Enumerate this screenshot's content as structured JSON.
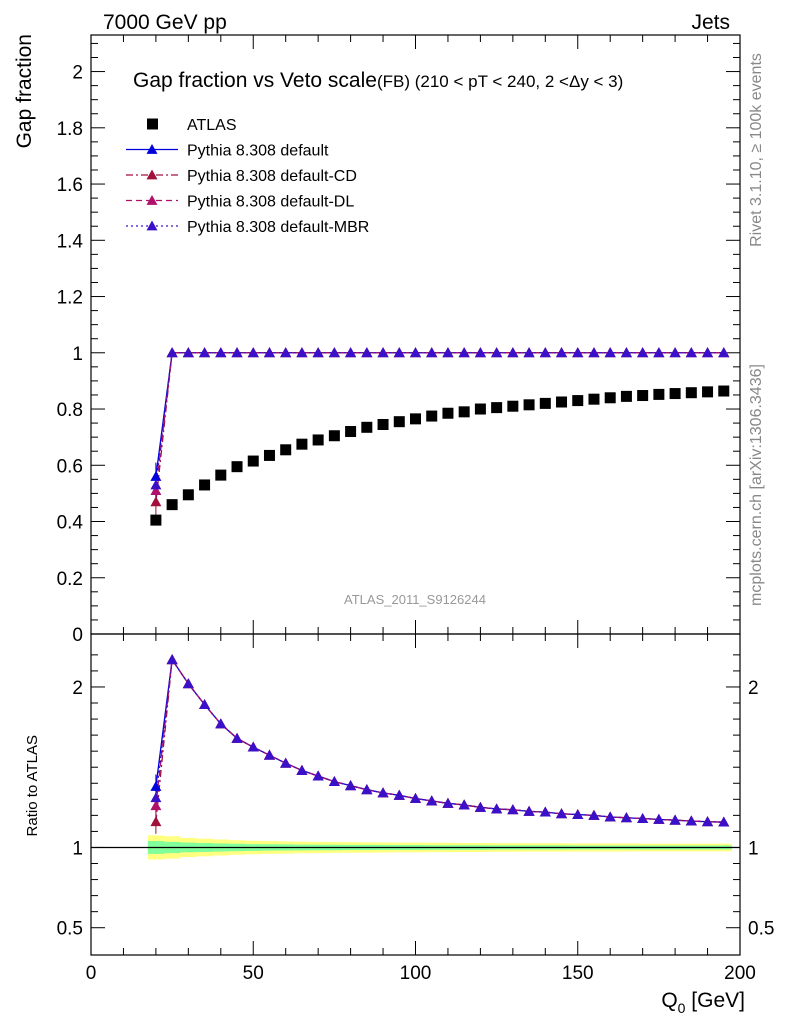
{
  "header": {
    "left": "7000 GeV pp",
    "right": "Jets"
  },
  "side_labels": {
    "rivet": "Rivet 3.1.10, ≥ 100k events",
    "mcplots": "mcplots.cern.ch [arXiv:1306.3436]"
  },
  "chart_data": [
    {
      "type": "scatter",
      "panel": "main",
      "title": "Gap fraction vs Veto scale",
      "subtitle": "(FB) (210 < pT < 240, 2 <Δy < 3)",
      "watermark": "ATLAS_2011_S9126244",
      "ylabel": "Gap fraction",
      "xlabel": "",
      "xlim": [
        0,
        200
      ],
      "ylim": [
        0,
        2.13
      ],
      "yticks": [
        0,
        0.2,
        0.4,
        0.6,
        0.8,
        1,
        1.2,
        1.4,
        1.6,
        1.8,
        2
      ],
      "ytick_labels": [
        "0",
        "0.2",
        "0.4",
        "0.6",
        "0.8",
        "1",
        "1.2",
        "1.4",
        "1.6",
        "1.8",
        "2"
      ],
      "legend_position": "top-left",
      "x": [
        20,
        25,
        30,
        35,
        40,
        45,
        50,
        55,
        60,
        65,
        70,
        75,
        80,
        85,
        90,
        95,
        100,
        105,
        110,
        115,
        120,
        125,
        130,
        135,
        140,
        145,
        150,
        155,
        160,
        165,
        170,
        175,
        180,
        185,
        190,
        195
      ],
      "series": [
        {
          "name": "ATLAS",
          "color": "#000000",
          "marker": "square",
          "values": [
            0.405,
            0.46,
            0.495,
            0.53,
            0.565,
            0.595,
            0.615,
            0.635,
            0.655,
            0.675,
            0.69,
            0.705,
            0.72,
            0.735,
            0.745,
            0.755,
            0.765,
            0.775,
            0.785,
            0.79,
            0.8,
            0.805,
            0.81,
            0.815,
            0.82,
            0.825,
            0.83,
            0.835,
            0.84,
            0.845,
            0.848,
            0.852,
            0.855,
            0.858,
            0.861,
            0.864
          ]
        },
        {
          "name": "Pythia 8.308 default",
          "color": "#0000dd",
          "marker": "triangle",
          "line": "solid",
          "values": [
            0.56,
            1,
            1,
            1,
            1,
            1,
            1,
            1,
            1,
            1,
            1,
            1,
            1,
            1,
            1,
            1,
            1,
            1,
            1,
            1,
            1,
            1,
            1,
            1,
            1,
            1,
            1,
            1,
            1,
            1,
            1,
            1,
            1,
            1,
            1,
            1
          ]
        },
        {
          "name": "Pythia 8.308 default-CD",
          "color": "#a0103a",
          "marker": "triangle",
          "line": "dashdot",
          "values": [
            0.47,
            1,
            1,
            1,
            1,
            1,
            1,
            1,
            1,
            1,
            1,
            1,
            1,
            1,
            1,
            1,
            1,
            1,
            1,
            1,
            1,
            1,
            1,
            1,
            1,
            1,
            1,
            1,
            1,
            1,
            1,
            1,
            1,
            1,
            1,
            1
          ]
        },
        {
          "name": "Pythia 8.308 default-DL",
          "color": "#b0106a",
          "marker": "triangle",
          "line": "dashed",
          "values": [
            0.51,
            1,
            1,
            1,
            1,
            1,
            1,
            1,
            1,
            1,
            1,
            1,
            1,
            1,
            1,
            1,
            1,
            1,
            1,
            1,
            1,
            1,
            1,
            1,
            1,
            1,
            1,
            1,
            1,
            1,
            1,
            1,
            1,
            1,
            1,
            1
          ]
        },
        {
          "name": "Pythia 8.308 default-MBR",
          "color": "#3a10c8",
          "marker": "triangle",
          "line": "dotted",
          "values": [
            0.53,
            1,
            1,
            1,
            1,
            1,
            1,
            1,
            1,
            1,
            1,
            1,
            1,
            1,
            1,
            1,
            1,
            1,
            1,
            1,
            1,
            1,
            1,
            1,
            1,
            1,
            1,
            1,
            1,
            1,
            1,
            1,
            1,
            1,
            1,
            1
          ]
        }
      ]
    },
    {
      "type": "scatter",
      "panel": "ratio",
      "ylabel": "Ratio to ATLAS",
      "xlabel": "Q",
      "xlabel_sub": "0",
      "xlabel_unit": " [GeV]",
      "xlim": [
        0,
        200
      ],
      "ylim": [
        0.33,
        2.33
      ],
      "xticks": [
        0,
        50,
        100,
        150,
        200
      ],
      "xtick_labels": [
        "0",
        "50",
        "100",
        "150",
        "200"
      ],
      "yticks": [
        0.5,
        1,
        2
      ],
      "ytick_labels": [
        "0.5",
        "1",
        "2"
      ],
      "band_color_outer": "#ffff80",
      "band_color_inner": "#80ff9a",
      "x": [
        20,
        25,
        30,
        35,
        40,
        45,
        50,
        55,
        60,
        65,
        70,
        75,
        80,
        85,
        90,
        95,
        100,
        105,
        110,
        115,
        120,
        125,
        130,
        135,
        140,
        145,
        150,
        155,
        160,
        165,
        170,
        175,
        180,
        185,
        190,
        195
      ],
      "band_outer": [
        0.075,
        0.07,
        0.06,
        0.055,
        0.05,
        0.045,
        0.042,
        0.04,
        0.038,
        0.036,
        0.035,
        0.034,
        0.033,
        0.032,
        0.031,
        0.03,
        0.03,
        0.029,
        0.029,
        0.028,
        0.028,
        0.027,
        0.027,
        0.026,
        0.026,
        0.026,
        0.025,
        0.025,
        0.025,
        0.025,
        0.024,
        0.024,
        0.024,
        0.024,
        0.024,
        0.024
      ],
      "band_inner": [
        0.04,
        0.035,
        0.03,
        0.028,
        0.025,
        0.023,
        0.021,
        0.02,
        0.019,
        0.018,
        0.017,
        0.017,
        0.016,
        0.016,
        0.015,
        0.015,
        0.015,
        0.014,
        0.014,
        0.014,
        0.014,
        0.013,
        0.013,
        0.013,
        0.013,
        0.013,
        0.012,
        0.012,
        0.012,
        0.012,
        0.012,
        0.012,
        0.012,
        0.012,
        0.012,
        0.012
      ],
      "series": [
        {
          "name": "Pythia 8.308 default",
          "color": "#0000dd",
          "line": "solid",
          "values": [
            1.38,
            2.17,
            2.02,
            1.89,
            1.77,
            1.68,
            1.625,
            1.575,
            1.525,
            1.48,
            1.445,
            1.41,
            1.385,
            1.36,
            1.34,
            1.325,
            1.305,
            1.29,
            1.275,
            1.265,
            1.25,
            1.24,
            1.235,
            1.225,
            1.22,
            1.21,
            1.205,
            1.2,
            1.19,
            1.185,
            1.18,
            1.175,
            1.17,
            1.165,
            1.16,
            1.158
          ]
        },
        {
          "name": "Pythia 8.308 default-CD",
          "color": "#a0103a",
          "line": "dashdot",
          "values": [
            1.16,
            2.17,
            2.02,
            1.89,
            1.77,
            1.68,
            1.625,
            1.575,
            1.525,
            1.48,
            1.445,
            1.41,
            1.385,
            1.36,
            1.34,
            1.325,
            1.305,
            1.29,
            1.275,
            1.265,
            1.25,
            1.24,
            1.235,
            1.225,
            1.22,
            1.21,
            1.205,
            1.2,
            1.19,
            1.185,
            1.18,
            1.175,
            1.17,
            1.165,
            1.16,
            1.158
          ]
        },
        {
          "name": "Pythia 8.308 default-DL",
          "color": "#b0106a",
          "line": "dashed",
          "values": [
            1.26,
            2.17,
            2.02,
            1.89,
            1.77,
            1.68,
            1.625,
            1.575,
            1.525,
            1.48,
            1.445,
            1.41,
            1.385,
            1.36,
            1.34,
            1.325,
            1.305,
            1.29,
            1.275,
            1.265,
            1.25,
            1.24,
            1.235,
            1.225,
            1.22,
            1.21,
            1.205,
            1.2,
            1.19,
            1.185,
            1.18,
            1.175,
            1.17,
            1.165,
            1.16,
            1.158
          ]
        },
        {
          "name": "Pythia 8.308 default-MBR",
          "color": "#3a10c8",
          "line": "dotted",
          "values": [
            1.31,
            2.17,
            2.02,
            1.89,
            1.77,
            1.68,
            1.625,
            1.575,
            1.525,
            1.48,
            1.445,
            1.41,
            1.385,
            1.36,
            1.34,
            1.325,
            1.305,
            1.29,
            1.275,
            1.265,
            1.25,
            1.24,
            1.235,
            1.225,
            1.22,
            1.21,
            1.205,
            1.2,
            1.19,
            1.185,
            1.18,
            1.175,
            1.17,
            1.165,
            1.16,
            1.158
          ]
        }
      ]
    }
  ]
}
